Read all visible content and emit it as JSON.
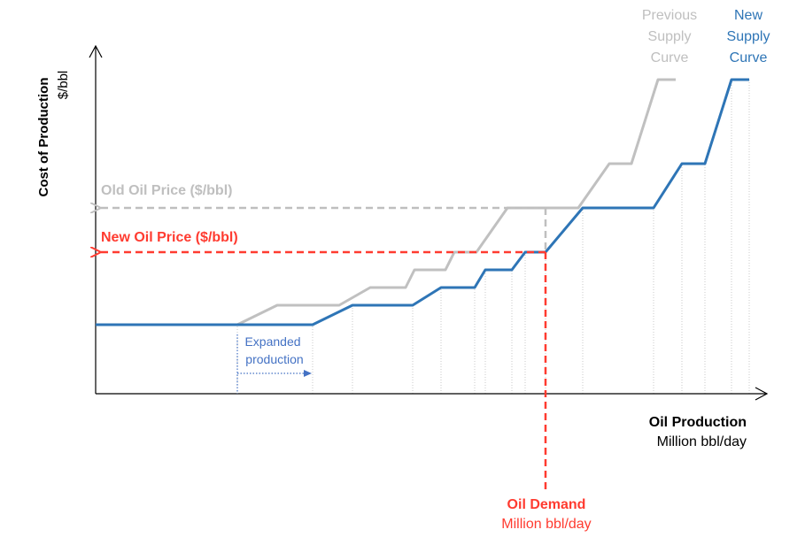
{
  "chart_data": {
    "type": "line",
    "xlabel": "Oil Production",
    "xunit": "Million bbl/day",
    "ylabel": "Cost of Production",
    "yunit": "$/bbl",
    "series": [
      {
        "name": "Previous Supply Curve",
        "color": "#c0c0c0",
        "points": [
          [
            0,
            78
          ],
          [
            160,
            78
          ],
          [
            205,
            100
          ],
          [
            275,
            100
          ],
          [
            310,
            120
          ],
          [
            350,
            120
          ],
          [
            360,
            140
          ],
          [
            395,
            140
          ],
          [
            405,
            160
          ],
          [
            430,
            160
          ],
          [
            465,
            210
          ],
          [
            545,
            210
          ],
          [
            580,
            260
          ],
          [
            605,
            260
          ],
          [
            635,
            355
          ],
          [
            655,
            355
          ]
        ]
      },
      {
        "name": "New Supply Curve",
        "color": "#2e75b6",
        "points": [
          [
            0,
            78
          ],
          [
            245,
            78
          ],
          [
            290,
            100
          ],
          [
            358,
            100
          ],
          [
            390,
            120
          ],
          [
            428,
            120
          ],
          [
            440,
            140
          ],
          [
            470,
            140
          ],
          [
            485,
            160
          ],
          [
            508,
            160
          ],
          [
            550,
            210
          ],
          [
            630,
            210
          ],
          [
            662,
            260
          ],
          [
            688,
            260
          ],
          [
            718,
            355
          ],
          [
            738,
            355
          ]
        ]
      }
    ],
    "legend": {
      "previous_lines": [
        "Previous",
        "Supply",
        "Curve"
      ],
      "new_lines": [
        "New",
        "Supply",
        "Curve"
      ]
    },
    "annotations": {
      "old_price": {
        "label": "Old Oil Price ($/bbl)",
        "y": 210,
        "color": "#bfbfbf"
      },
      "new_price": {
        "label": "New Oil Price ($/bbl)",
        "y": 160,
        "color": "#ff3b30"
      },
      "demand": {
        "label": "Oil Demand",
        "unit": "Million bbl/day",
        "x": 508,
        "color": "#ff3b30"
      },
      "expanded": {
        "lines": [
          "Expanded",
          "production"
        ],
        "x_from": 160,
        "x_to": 245,
        "color": "#4472c4"
      }
    },
    "xlim": [
      0,
      760
    ],
    "ylim": [
      0,
      375
    ],
    "grid_x": [
      160,
      245,
      290,
      358,
      390,
      428,
      440,
      470,
      485,
      508,
      550,
      630,
      662,
      688,
      718,
      738
    ],
    "grid": "vertical dotted"
  }
}
